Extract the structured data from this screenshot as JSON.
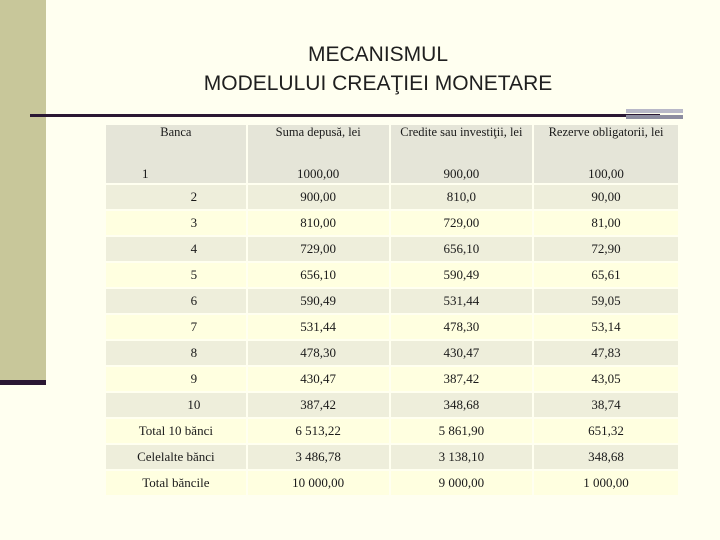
{
  "title": {
    "line1": "MECANISMUL",
    "line2": "MODELULUI CREAŢIEI MONETARE"
  },
  "table": {
    "headers": [
      "Banca",
      "Suma depusă, lei",
      "Credite sau investiţii, lei",
      "Rezerve obligatorii, lei"
    ],
    "first_row": [
      "1",
      "1000,00",
      "900,00",
      "100,00"
    ],
    "rows": [
      [
        "2",
        "900,00",
        "810,0",
        "90,00"
      ],
      [
        "3",
        "810,00",
        "729,00",
        "81,00"
      ],
      [
        "4",
        "729,00",
        "656,10",
        "72,90"
      ],
      [
        "5",
        "656,10",
        "590,49",
        "65,61"
      ],
      [
        "6",
        "590,49",
        "531,44",
        "59,05"
      ],
      [
        "7",
        "531,44",
        "478,30",
        "53,14"
      ],
      [
        "8",
        "478,30",
        "430,47",
        "47,83"
      ],
      [
        "9",
        "430,47",
        "387,42",
        "43,05"
      ],
      [
        "10",
        "387,42",
        "348,68",
        "38,74"
      ],
      [
        "Total 10 bănci",
        "6 513,22",
        "5 861,90",
        "651,32"
      ],
      [
        "Celelalte bănci",
        "3 486,78",
        "3 138,10",
        "348,68"
      ],
      [
        "Total băncile",
        "10 000,00",
        "9 000,00",
        "1 000,00"
      ]
    ]
  },
  "colors": {
    "background": "#fffff0",
    "left_bar": "#c8c79a",
    "rule": "#2a1733",
    "row_light": "#ffffe0",
    "row_dark": "#eeeedb"
  }
}
